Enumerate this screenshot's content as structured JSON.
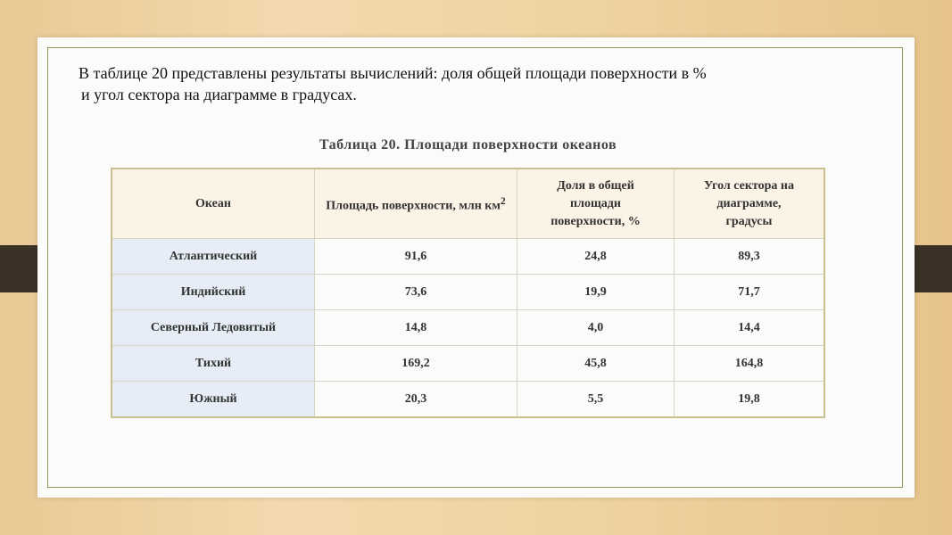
{
  "intro": {
    "line1": "В таблице 20 представлены результаты вычислений: доля общей площади поверхности  в %",
    "line2": "и угол сектора на диаграмме в градусах."
  },
  "table": {
    "title": "Таблица 20. Площади поверхности океанов",
    "headers": [
      "Океан",
      "Площадь поверхности, млн км",
      "Доля в общей площади поверхности, %",
      "Угол сектора на диаграмме, градусы"
    ],
    "header_sup": "2",
    "rows": [
      [
        "Атлантический",
        "91,6",
        "24,8",
        "89,3"
      ],
      [
        "Индийский",
        "73,6",
        "19,9",
        "71,7"
      ],
      [
        "Северный Ледовитый",
        "14,8",
        "4,0",
        "14,4"
      ],
      [
        "Тихий",
        "169,2",
        "45,8",
        "164,8"
      ],
      [
        "Южный",
        "20,3",
        "5,5",
        "19,8"
      ]
    ]
  }
}
